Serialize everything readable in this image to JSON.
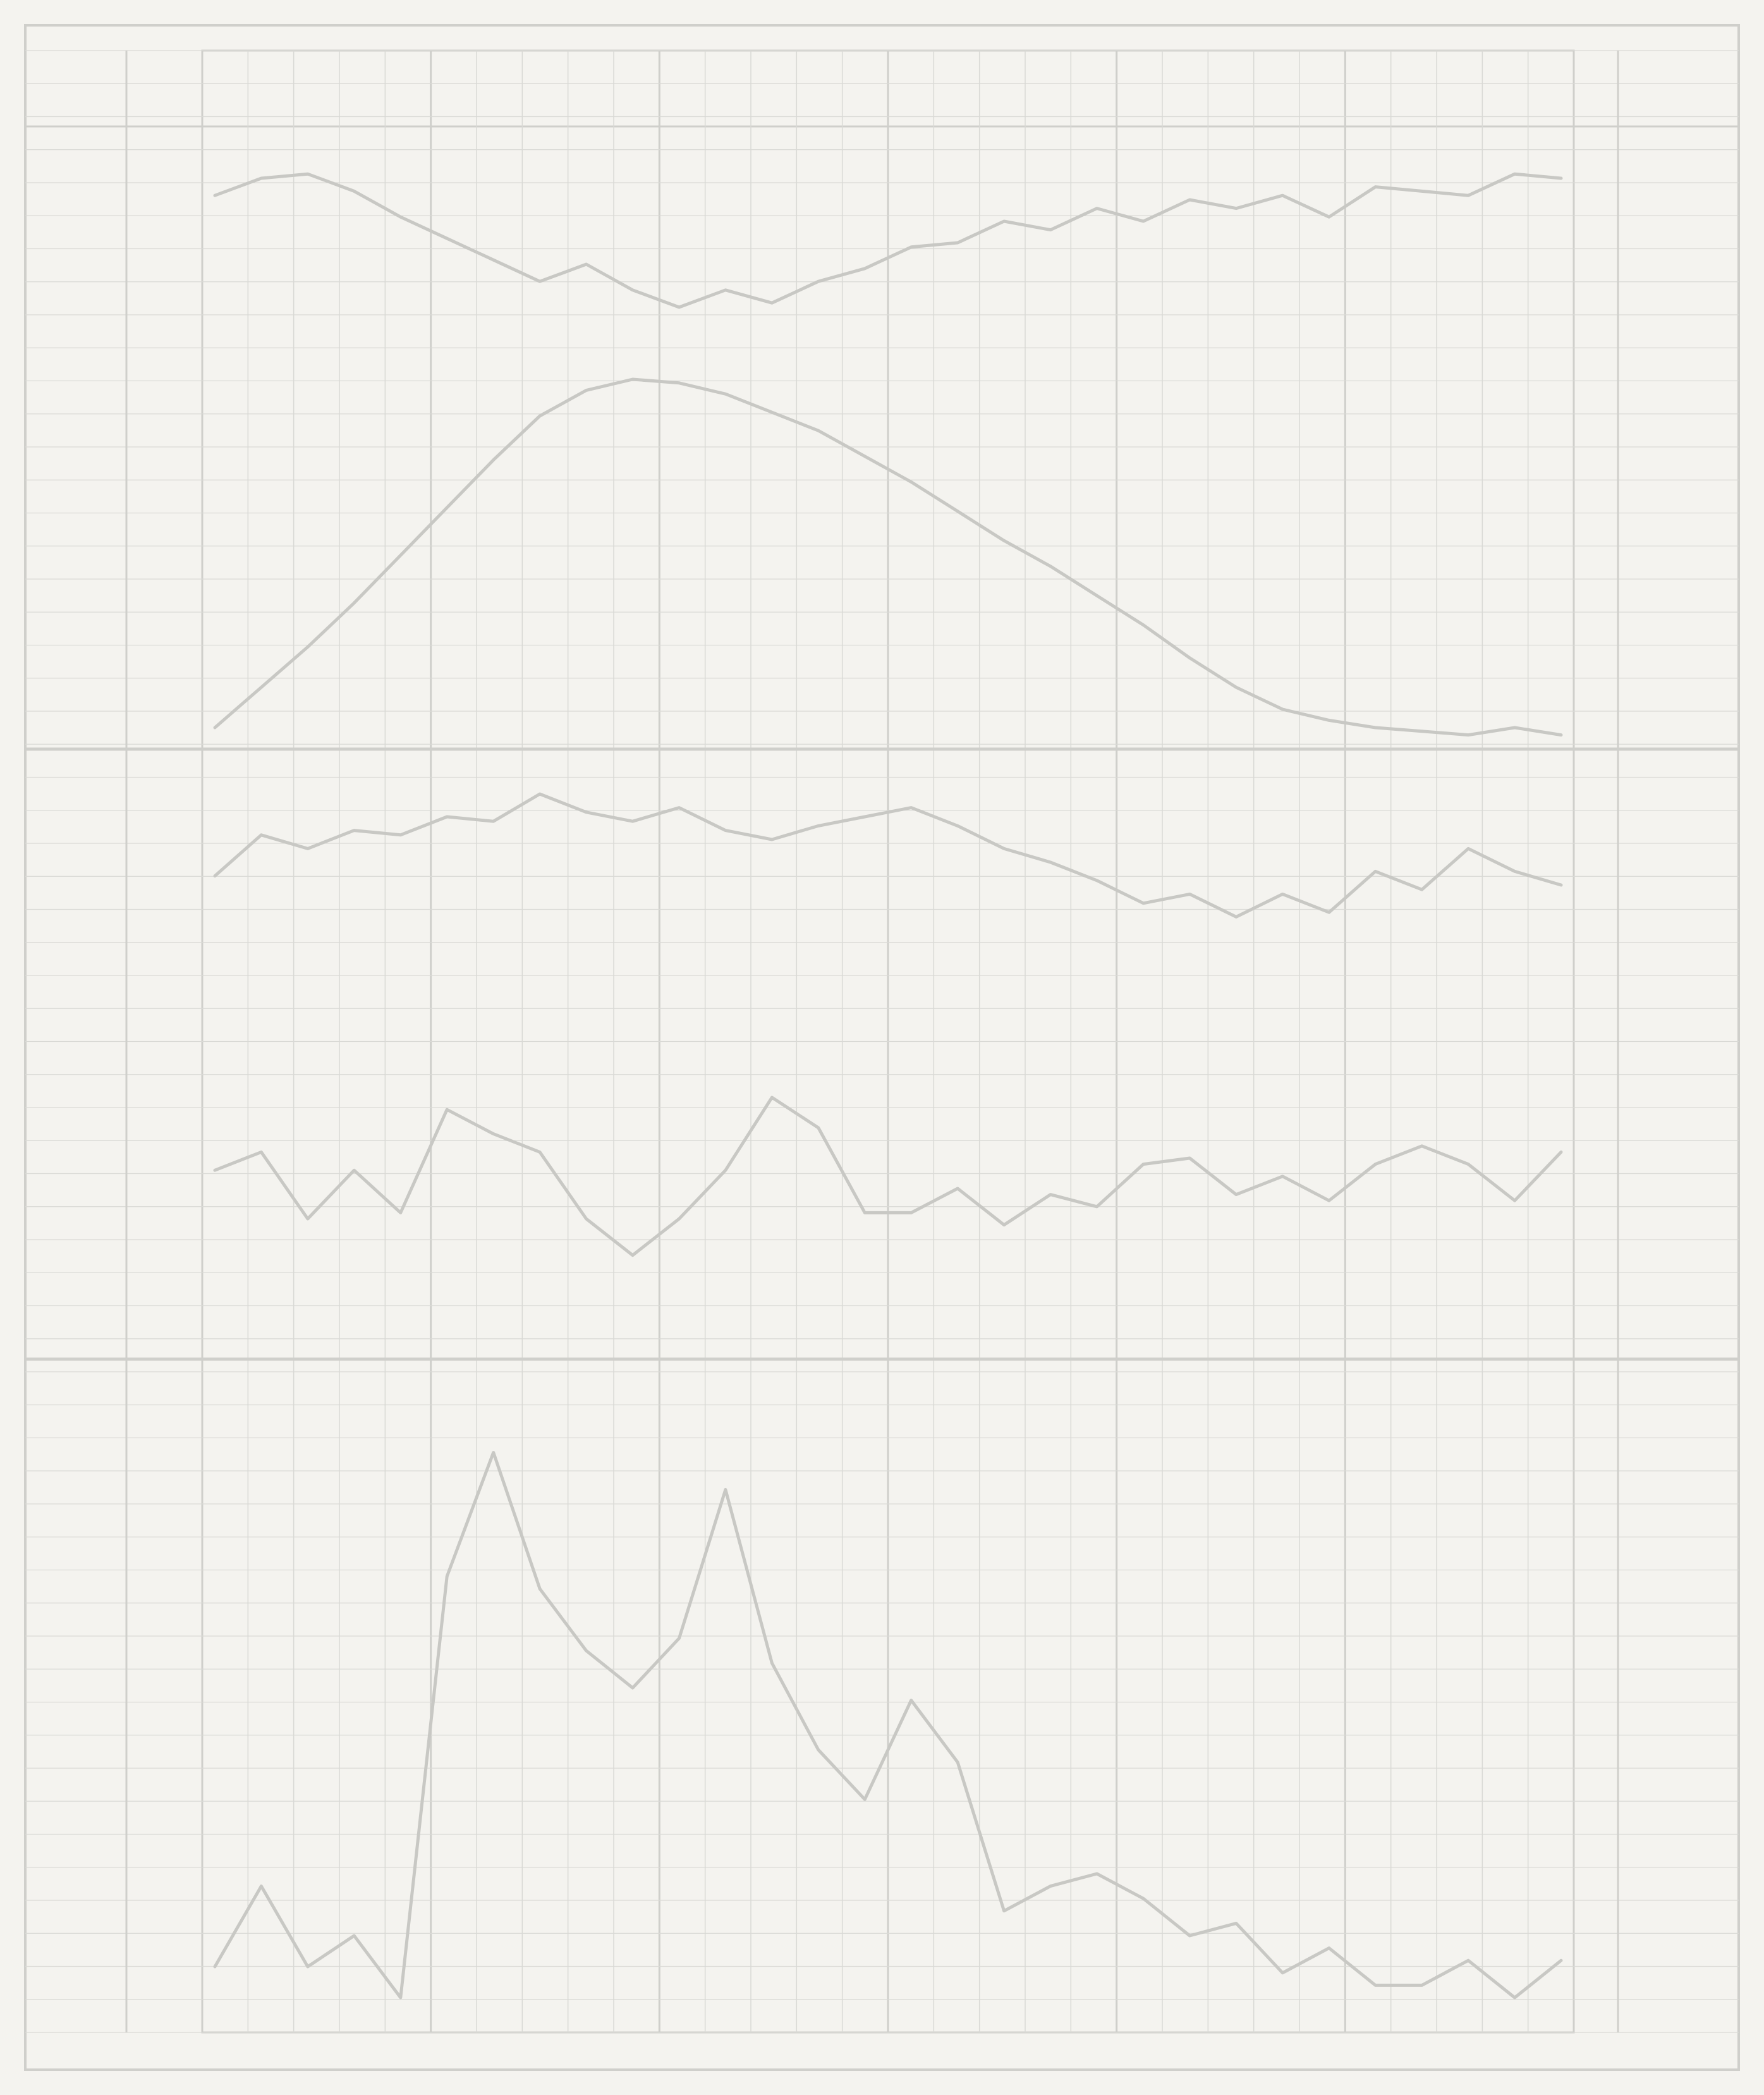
{
  "title": {
    "text": "",
    "color": "#c9c9c5"
  },
  "colors": {
    "paper": "#f4f3ef",
    "grid": "#d9d9d5",
    "grid_strong": "#cfcfcb",
    "line": "#c8c8c4",
    "ink": "#c4c4c0"
  },
  "left_labels": [
    {
      "text": "",
      "panel": "pressure"
    },
    {
      "text": "",
      "panel": "temperature"
    },
    {
      "text": "",
      "panel": "humidity"
    },
    {
      "text": "",
      "panel": "wind"
    },
    {
      "text": "",
      "panel": "precipitation"
    }
  ],
  "right_labels": [
    {
      "text": "",
      "panel": "pressure"
    },
    {
      "text": "",
      "panel": "temperature"
    },
    {
      "text": "",
      "panel": "humidity"
    },
    {
      "text": "",
      "panel": "wind"
    },
    {
      "text": "",
      "panel": "precipitation"
    }
  ],
  "chart_data": [
    {
      "type": "line",
      "panel": "pressure",
      "title": "",
      "xlabel": "",
      "ylabel": "",
      "x": [
        1,
        2,
        3,
        4,
        5,
        6,
        7,
        8,
        9,
        10,
        11,
        12,
        13,
        14,
        15,
        16,
        17,
        18,
        19,
        20,
        21,
        22,
        23,
        24,
        25,
        26,
        27,
        28,
        29,
        30
      ],
      "series": [
        {
          "name": "",
          "values": [
            0.62,
            0.7,
            0.72,
            0.64,
            0.52,
            0.42,
            0.32,
            0.22,
            0.3,
            0.18,
            0.1,
            0.18,
            0.12,
            0.22,
            0.28,
            0.38,
            0.4,
            0.5,
            0.46,
            0.56,
            0.5,
            0.6,
            0.56,
            0.62,
            0.52,
            0.66,
            0.64,
            0.62,
            0.72,
            0.7
          ]
        }
      ],
      "ylim": [
        0,
        1
      ],
      "grid": true
    },
    {
      "type": "line",
      "panel": "temperature",
      "title": "",
      "xlabel": "",
      "ylabel": "",
      "x": [
        1,
        2,
        3,
        4,
        5,
        6,
        7,
        8,
        9,
        10,
        11,
        12,
        13,
        14,
        15,
        16,
        17,
        18,
        19,
        20,
        21,
        22,
        23,
        24,
        25,
        26,
        27,
        28,
        29,
        30
      ],
      "series": [
        {
          "name": "",
          "values": [
            0.05,
            0.16,
            0.27,
            0.39,
            0.52,
            0.65,
            0.78,
            0.9,
            0.97,
            1.0,
            0.99,
            0.96,
            0.91,
            0.86,
            0.79,
            0.72,
            0.64,
            0.56,
            0.49,
            0.41,
            0.33,
            0.24,
            0.16,
            0.1,
            0.07,
            0.05,
            0.04,
            0.03,
            0.05,
            0.03
          ]
        }
      ],
      "ylim": [
        0,
        1
      ],
      "grid": true
    },
    {
      "type": "line",
      "panel": "humidity",
      "title": "",
      "xlabel": "",
      "ylabel": "",
      "x": [
        1,
        2,
        3,
        4,
        5,
        6,
        7,
        8,
        9,
        10,
        11,
        12,
        13,
        14,
        15,
        16,
        17,
        18,
        19,
        20,
        21,
        22,
        23,
        24,
        25,
        26,
        27,
        28,
        29,
        30
      ],
      "series": [
        {
          "name": "",
          "values": [
            0.54,
            0.72,
            0.66,
            0.74,
            0.72,
            0.8,
            0.78,
            0.9,
            0.82,
            0.78,
            0.84,
            0.74,
            0.7,
            0.76,
            0.8,
            0.84,
            0.76,
            0.66,
            0.6,
            0.52,
            0.42,
            0.46,
            0.36,
            0.46,
            0.38,
            0.56,
            0.48,
            0.66,
            0.56,
            0.5
          ]
        }
      ],
      "ylim": [
        0,
        1
      ],
      "grid": true
    },
    {
      "type": "line",
      "panel": "wind",
      "title": "",
      "xlabel": "",
      "ylabel": "",
      "x": [
        1,
        2,
        3,
        4,
        5,
        6,
        7,
        8,
        9,
        10,
        11,
        12,
        13,
        14,
        15,
        16,
        17,
        18,
        19,
        20,
        21,
        22,
        23,
        24,
        25,
        26,
        27,
        28,
        29,
        30
      ],
      "series": [
        {
          "name": "",
          "values": [
            0.56,
            0.62,
            0.4,
            0.56,
            0.42,
            0.76,
            0.68,
            0.62,
            0.4,
            0.28,
            0.4,
            0.56,
            0.8,
            0.7,
            0.42,
            0.42,
            0.5,
            0.38,
            0.48,
            0.44,
            0.58,
            0.6,
            0.48,
            0.54,
            0.46,
            0.58,
            0.64,
            0.58,
            0.46,
            0.62
          ]
        }
      ],
      "ylim": [
        0,
        1
      ],
      "grid": true
    },
    {
      "type": "line",
      "panel": "precipitation",
      "title": "",
      "xlabel": "",
      "ylabel": "",
      "x": [
        1,
        2,
        3,
        4,
        5,
        6,
        7,
        8,
        9,
        10,
        11,
        12,
        13,
        14,
        15,
        16,
        17,
        18,
        19,
        20,
        21,
        22,
        23,
        24,
        25,
        26,
        27,
        28,
        29,
        30
      ],
      "series": [
        {
          "name": "",
          "values": [
            0.05,
            0.18,
            0.05,
            0.1,
            0.0,
            0.68,
            0.88,
            0.66,
            0.56,
            0.5,
            0.58,
            0.82,
            0.54,
            0.4,
            0.32,
            0.48,
            0.38,
            0.14,
            0.18,
            0.2,
            0.16,
            0.1,
            0.12,
            0.04,
            0.08,
            0.02,
            0.02,
            0.06,
            0.0,
            0.06
          ]
        }
      ],
      "ylim": [
        0,
        1
      ],
      "grid": true
    }
  ]
}
